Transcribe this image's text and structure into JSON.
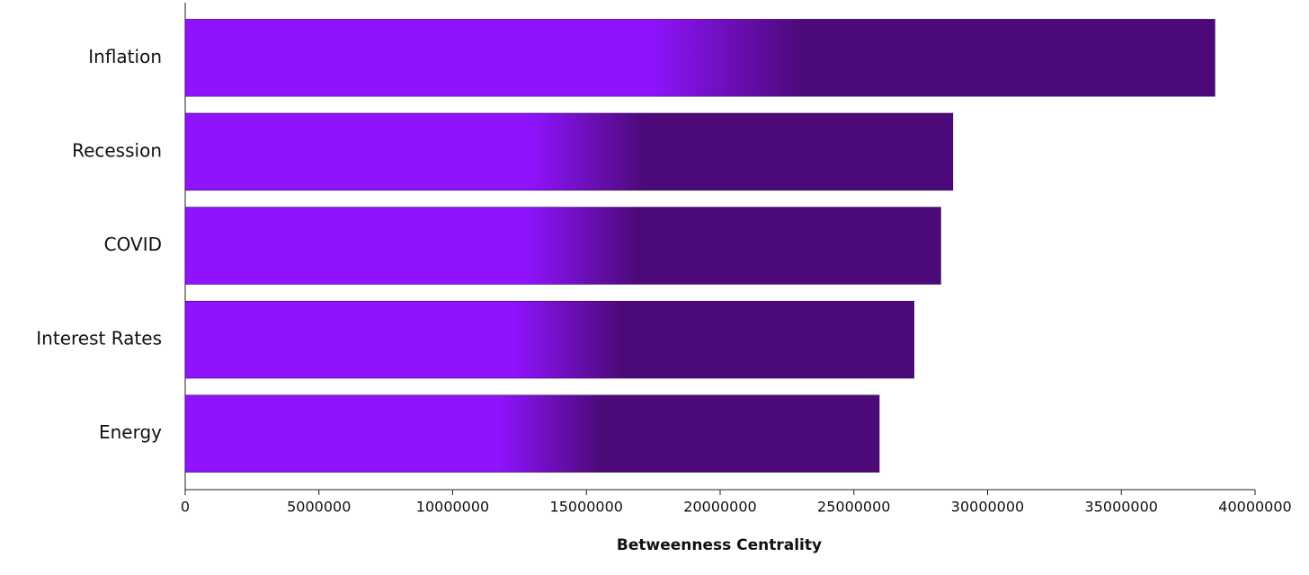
{
  "chart_data": {
    "type": "hbar",
    "x_label": "Betweenness Centrality",
    "categories": [
      "Inflation",
      "Recession",
      "COVID",
      "Interest Rates",
      "Energy"
    ],
    "values": [
      38500000,
      28700000,
      28250000,
      27250000,
      25950000
    ],
    "color": "#9013fe",
    "end_color": "#4b0a78",
    "xlim": [
      0,
      40000000
    ],
    "xticks": [
      0,
      5000000,
      10000000,
      15000000,
      20000000,
      25000000,
      30000000,
      35000000,
      40000000
    ],
    "grid": false
  }
}
